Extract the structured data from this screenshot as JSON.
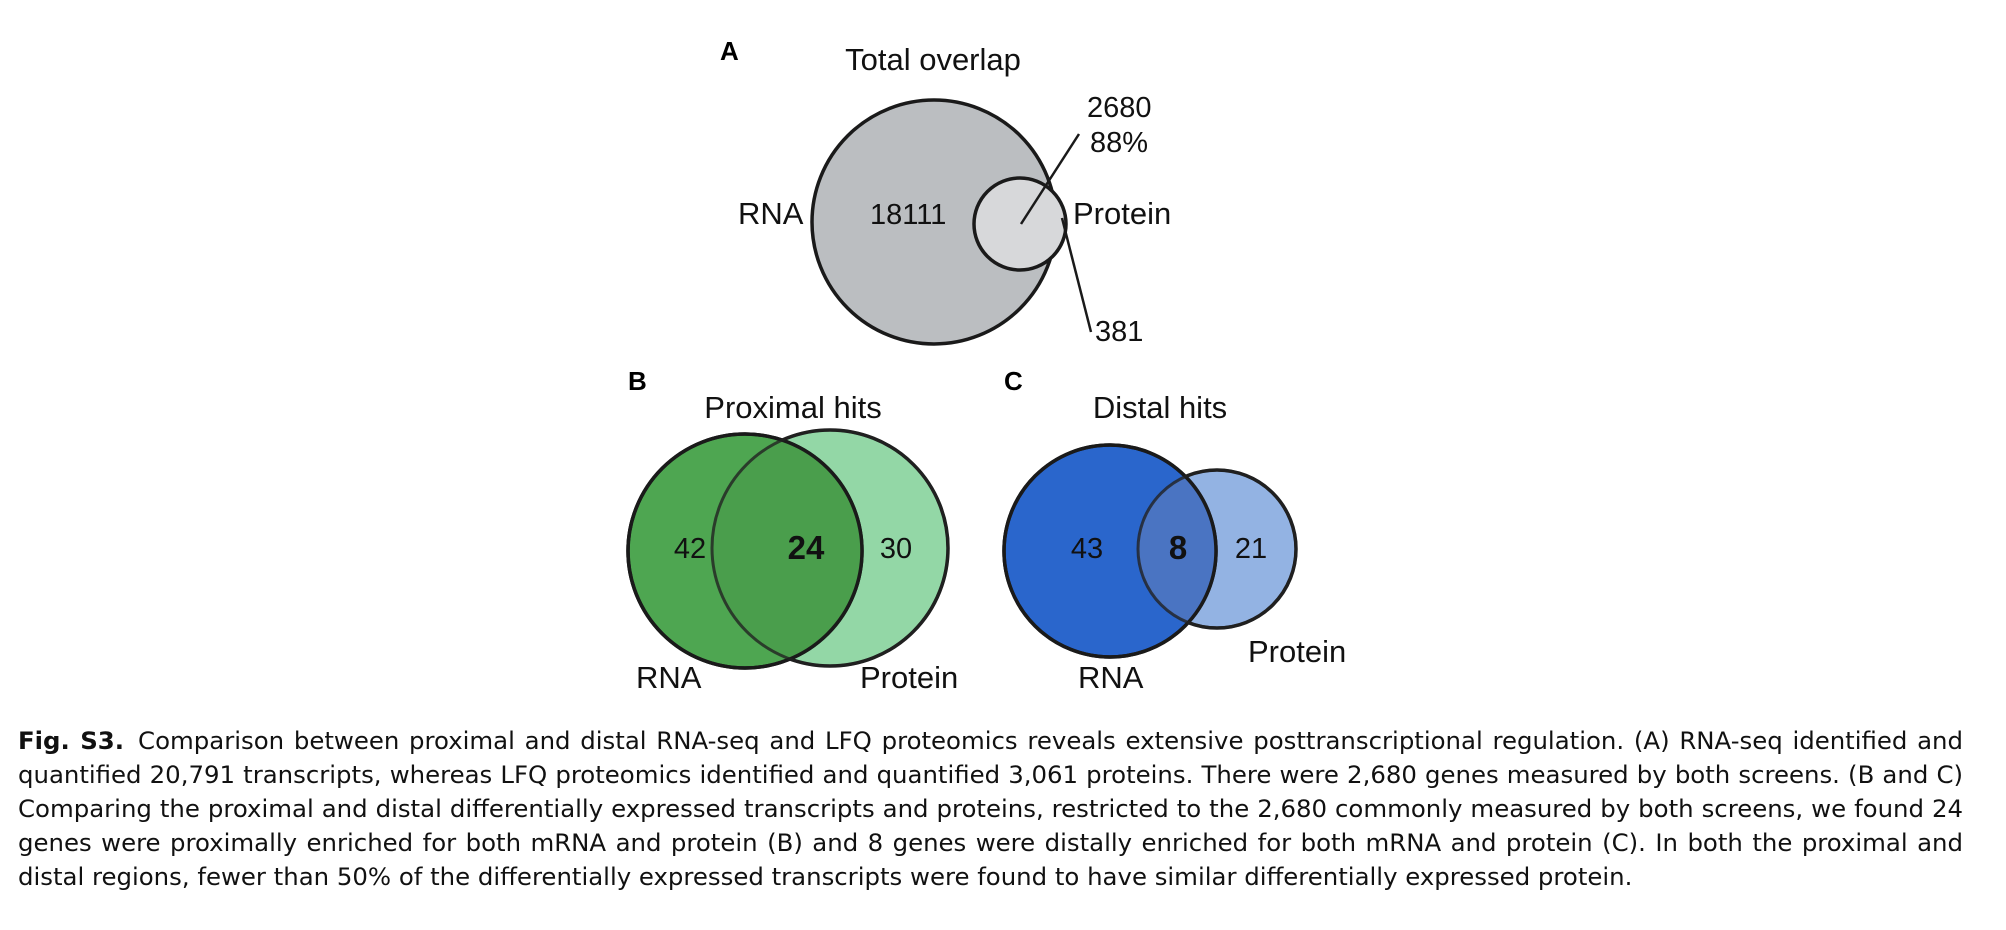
{
  "panel_a": {
    "letter": "A",
    "title": "Total overlap",
    "rna_label": "RNA",
    "protein_label": "Protein",
    "rna_only": "18111",
    "overlap_count": "2680",
    "overlap_percent": "88%",
    "protein_only": "381",
    "colors": {
      "rna": "#bbbec1",
      "protein": "#d7d8da"
    }
  },
  "panel_b": {
    "letter": "B",
    "title": "Proximal hits",
    "rna_label": "RNA",
    "protein_label": "Protein",
    "rna_only": "42",
    "overlap": "24",
    "protein_only": "30",
    "colors": {
      "title": "#4caf50",
      "rna": "#4ea651",
      "protein": "#93d7a6",
      "overlap": "#4a9e4c"
    }
  },
  "panel_c": {
    "letter": "C",
    "title": "Distal hits",
    "rna_label": "RNA",
    "protein_label": "Protein",
    "rna_only": "43",
    "overlap": "8",
    "protein_only": "21",
    "colors": {
      "title": "#2667c6",
      "rna": "#2a66cc",
      "protein": "#93b3e3",
      "overlap": "#4a74c2"
    }
  },
  "caption": {
    "label": "Fig. S3.",
    "text": "Comparison between proximal and distal RNA-seq and LFQ proteomics reveals extensive posttranscriptional regulation. (A) RNA-seq identified and quantified 20,791 transcripts, whereas LFQ proteomics identified and quantified 3,061 proteins. There were 2,680 genes measured by both screens. (B and C) Comparing the proximal and distal differentially expressed transcripts and proteins, restricted to the 2,680 commonly measured by both screens, we found 24 genes were proximally enriched for both mRNA and protein (B) and 8 genes were distally enriched for both mRNA and protein (C). In both the proximal and distal regions, fewer than 50% of the differentially expressed transcripts were found to have similar differentially expressed protein."
  }
}
